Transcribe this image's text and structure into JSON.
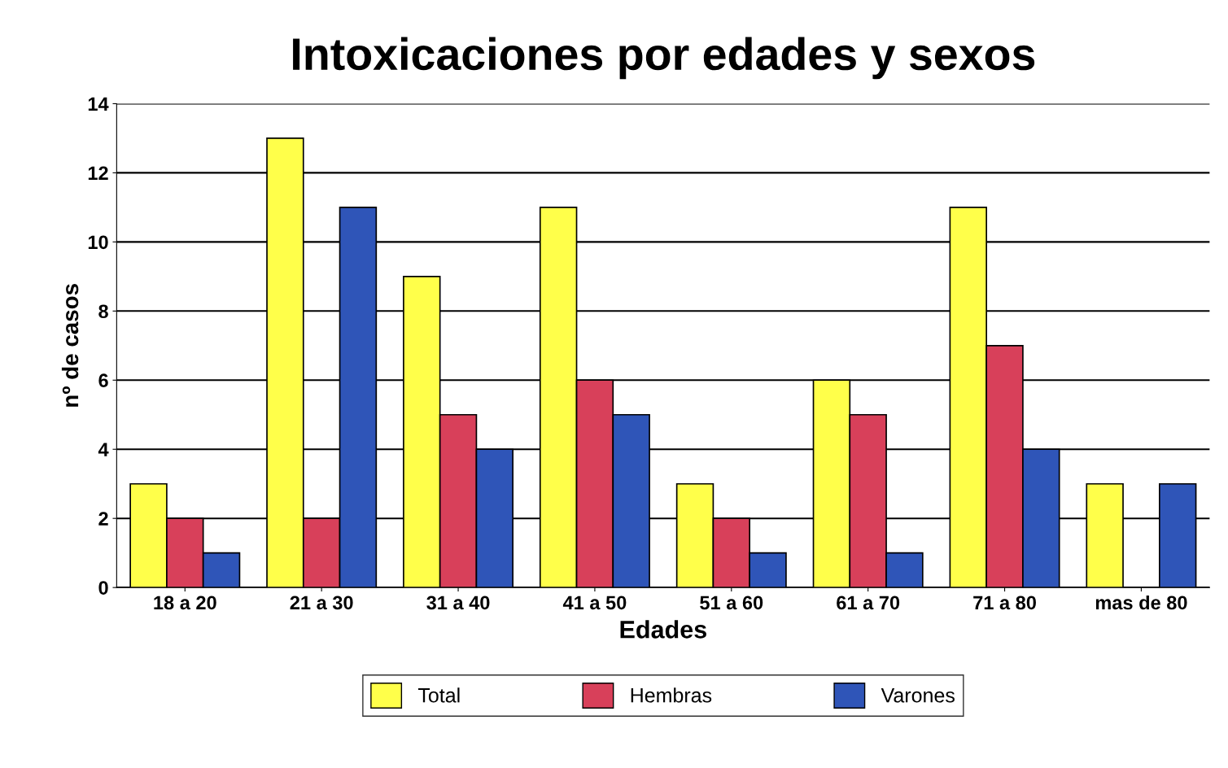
{
  "chart_data": {
    "type": "bar",
    "title": "Intoxicaciones por edades y sexos",
    "xlabel": "Edades",
    "ylabel": "nº de casos",
    "categories": [
      "18 a 20",
      "21 a 30",
      "31 a 40",
      "41 a 50",
      "51 a 60",
      "61 a 70",
      "71 a 80",
      "mas de 80"
    ],
    "series": [
      {
        "name": "Total",
        "color": "#ffff4a",
        "values": [
          3,
          13,
          9,
          11,
          3,
          6,
          11,
          3
        ]
      },
      {
        "name": "Hembras",
        "color": "#d8405a",
        "values": [
          2,
          2,
          5,
          6,
          2,
          5,
          7,
          null
        ]
      },
      {
        "name": "Varones",
        "color": "#2f55b8",
        "values": [
          1,
          11,
          4,
          5,
          1,
          1,
          4,
          3
        ]
      }
    ],
    "ylim": [
      0,
      14
    ],
    "yticks": [
      0,
      2,
      4,
      6,
      8,
      10,
      12,
      14
    ],
    "grid": "y",
    "legend": "bottom"
  }
}
